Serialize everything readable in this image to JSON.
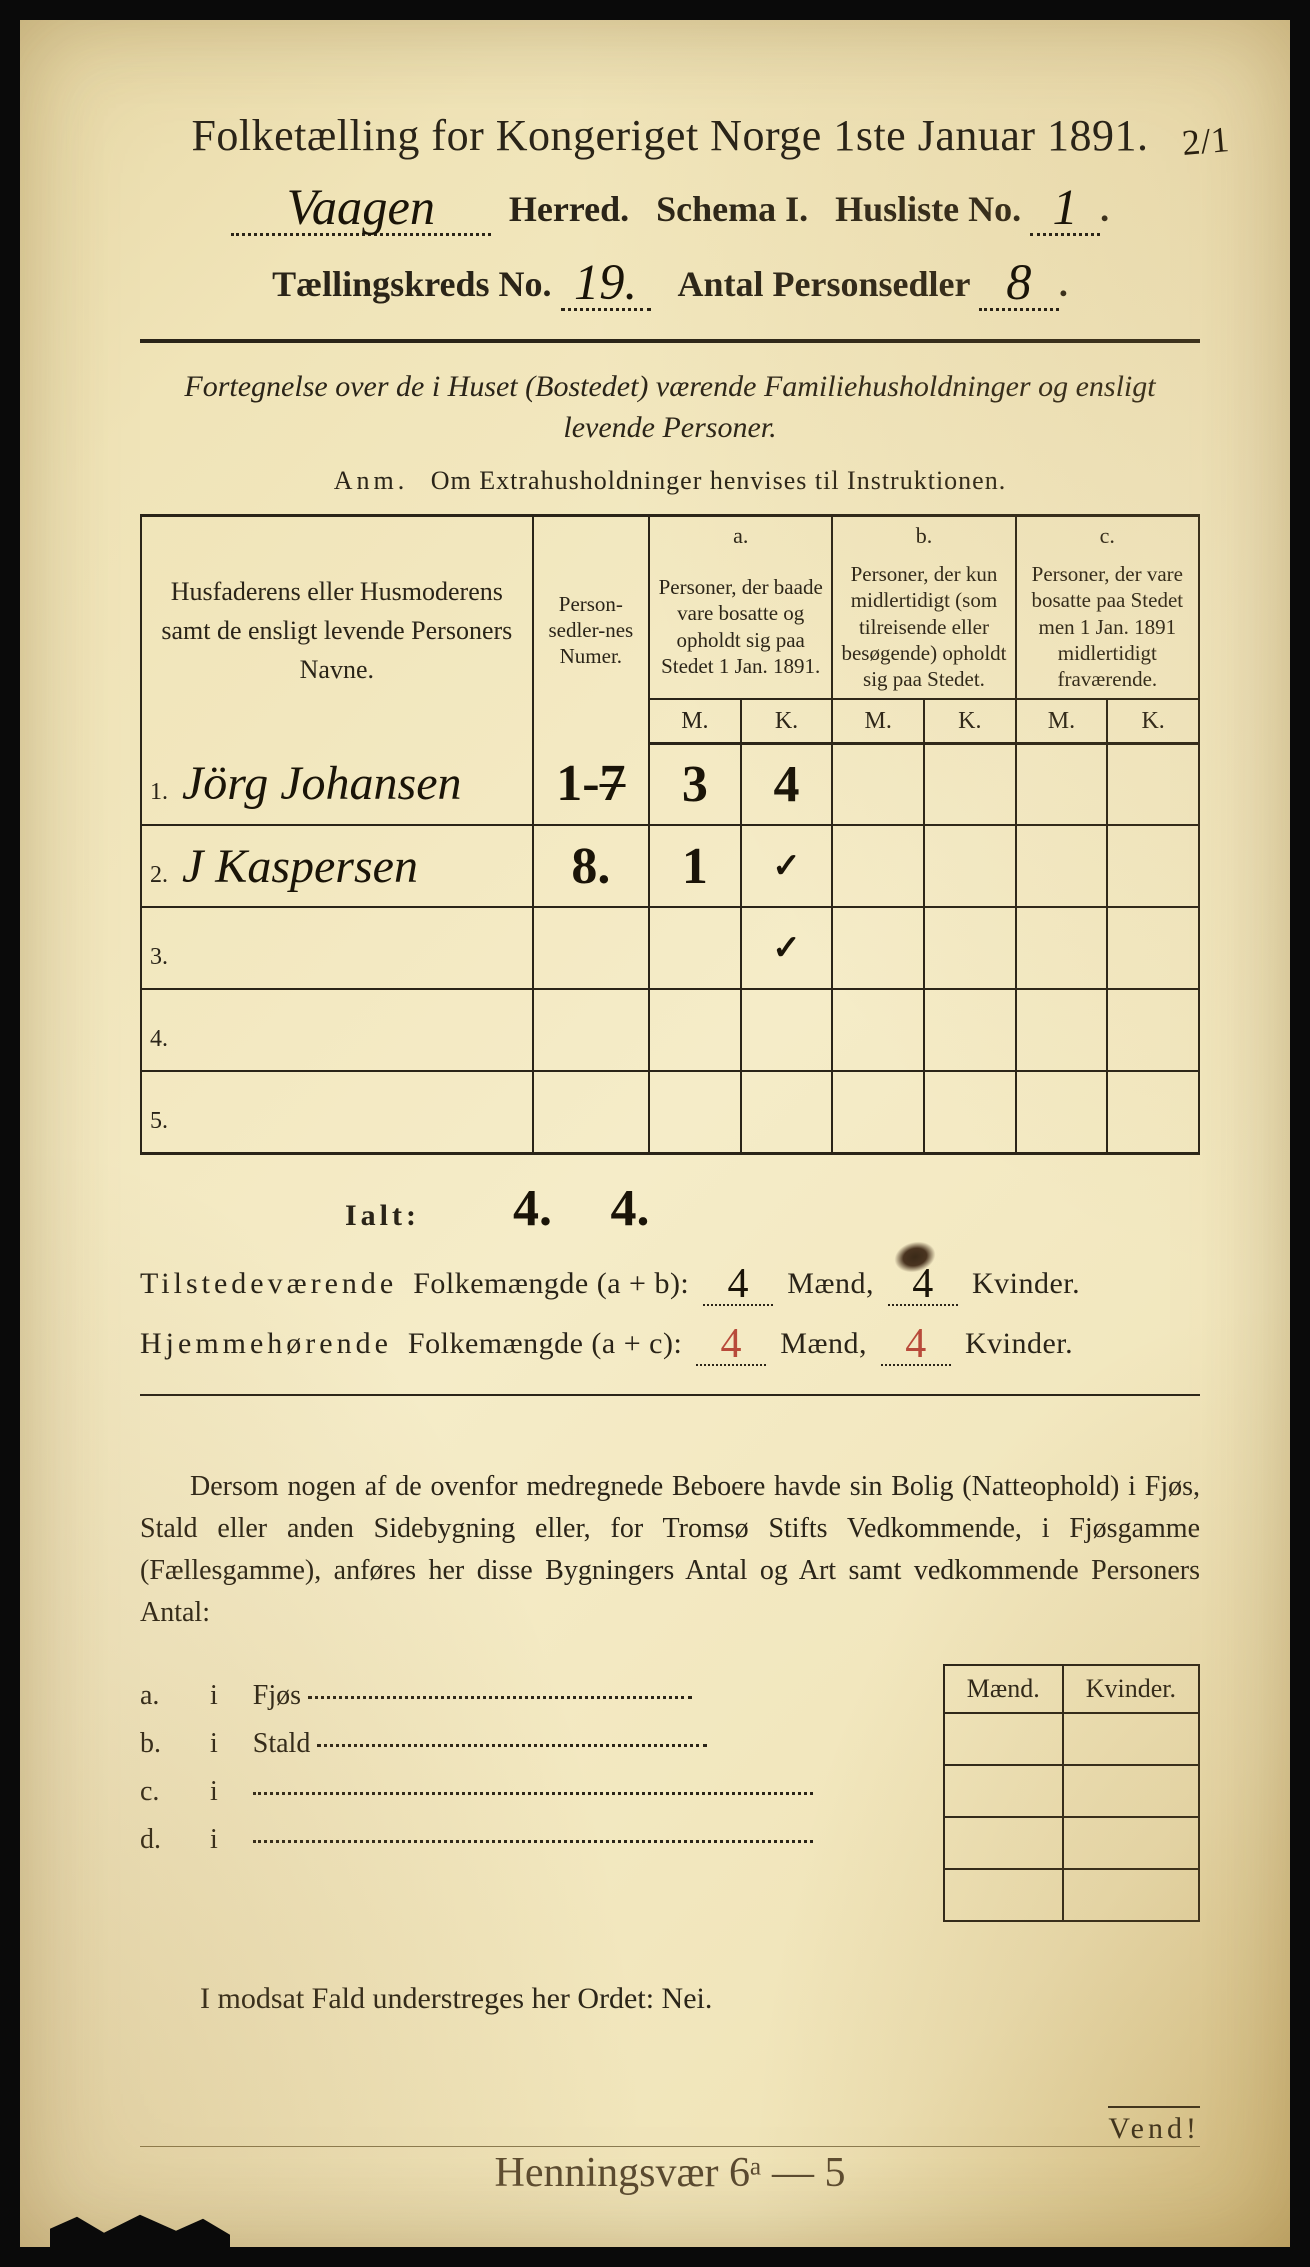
{
  "title": "Folketælling for Kongeriget Norge 1ste Januar 1891.",
  "corner_note": "2/1",
  "header": {
    "herred_value": "Vaagen",
    "herred_label": "Herred.",
    "schema_label": "Schema I.",
    "husliste_label": "Husliste No.",
    "husliste_value": "1",
    "kreds_label": "Tællingskreds No.",
    "kreds_value": "19.",
    "antall_label": "Antal Personsedler",
    "antall_value": "8"
  },
  "subtitle": "Fortegnelse over de i Huset (Bostedet) værende Familiehusholdninger og ensligt levende Personer.",
  "anm_label": "Anm.",
  "anm_text": "Om Extrahusholdninger henvises til Instruktionen.",
  "table": {
    "col_names": "Husfaderens eller Husmoderens samt de ensligt levende Personers Navne.",
    "col_numer": "Person-sedler-nes Numer.",
    "abc": {
      "a": "a.",
      "b": "b.",
      "c": "c."
    },
    "col_a": "Personer, der baade vare bosatte og opholdt sig paa Stedet 1 Jan. 1891.",
    "col_b": "Personer, der kun midlertidigt (som tilreisende eller besøgende) opholdt sig paa Stedet.",
    "col_c": "Personer, der vare bosatte paa Stedet men 1 Jan. 1891 midlertidigt fraværende.",
    "m": "M.",
    "k": "K.",
    "rows": [
      {
        "n": "1.",
        "name": "Jörg Johansen",
        "numer": "1-7",
        "numer_strike": "7",
        "a_m": "3",
        "a_k": "4",
        "b_m": "",
        "b_k": "",
        "c_m": "",
        "c_k": ""
      },
      {
        "n": "2.",
        "name": "J Kaspersen",
        "numer": "8.",
        "a_m": "1",
        "a_k": "✓",
        "b_m": "",
        "b_k": "",
        "c_m": "",
        "c_k": ""
      },
      {
        "n": "3.",
        "name": "",
        "numer": "",
        "a_m": "",
        "a_k": "✓",
        "b_m": "",
        "b_k": "",
        "c_m": "",
        "c_k": ""
      },
      {
        "n": "4.",
        "name": "",
        "numer": "",
        "a_m": "",
        "a_k": "",
        "b_m": "",
        "b_k": "",
        "c_m": "",
        "c_k": ""
      },
      {
        "n": "5.",
        "name": "",
        "numer": "",
        "a_m": "",
        "a_k": "",
        "b_m": "",
        "b_k": "",
        "c_m": "",
        "c_k": ""
      }
    ],
    "widths": {
      "name": "37%",
      "numer": "11%",
      "mk": "8.66%"
    }
  },
  "ialt": {
    "label": "Ialt:",
    "a_m": "4.",
    "a_k": "4."
  },
  "summary": {
    "line1_pre": "Tilstedeværende",
    "line1_mid": "Folkemængde (a + b):",
    "line1_m": "4",
    "line1_k": "4",
    "line2_pre": "Hjemmehørende",
    "line2_mid": "Folkemængde (a + c):",
    "line2_m": "4",
    "line2_k": "4",
    "maend": "Mænd,",
    "kvinder": "Kvinder."
  },
  "paragraph": "Dersom nogen af de ovenfor medregnede Beboere havde sin Bolig (Natteophold) i Fjøs, Stald eller anden Sidebygning eller, for Tromsø Stifts Vedkommende, i Fjøsgamme (Fællesgamme), anføres her disse Bygningers Antal og Art samt vedkommende Personers Antal:",
  "bldg": {
    "maend": "Mænd.",
    "kvinder": "Kvinder.",
    "rows": [
      {
        "lab": "a.  i",
        "name": "Fjøs"
      },
      {
        "lab": "b.  i",
        "name": "Stald"
      },
      {
        "lab": "c.  i",
        "name": ""
      },
      {
        "lab": "d.  i",
        "name": ""
      }
    ]
  },
  "final_line": "I modsat Fald understreges her Ordet: Nei.",
  "vend": "Vend!",
  "bottom_hand": "Henningsvær 6ᵃ — 5",
  "colors": {
    "paper_mid": "#f5ecc8",
    "paper_edge": "#e4d39a",
    "ink": "#2a2418",
    "hand_ink": "#1a1408",
    "red_ink": "#b84a3a",
    "bg": "#0a0a0a"
  },
  "fontsizes": {
    "title": 44,
    "header": 36,
    "subtitle": 30,
    "table_desc": 21,
    "body": 28,
    "hw": 48
  }
}
